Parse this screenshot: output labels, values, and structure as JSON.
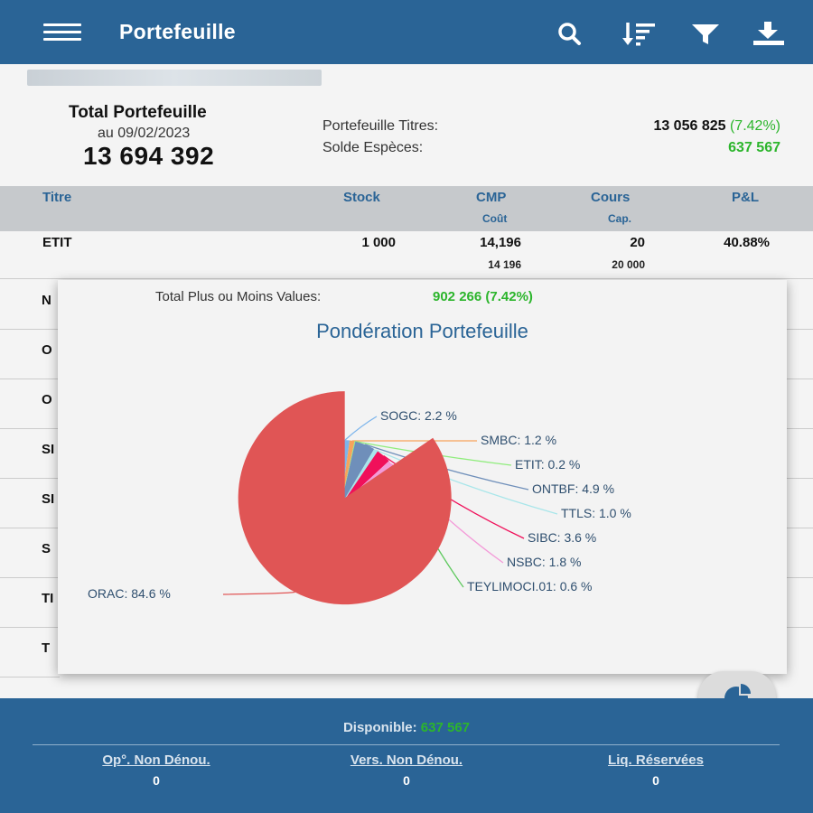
{
  "header": {
    "title": "Portefeuille",
    "icons": [
      "menu-icon",
      "search-icon",
      "sort-icon",
      "filter-icon",
      "download-icon"
    ]
  },
  "summary": {
    "total_label": "Total Portefeuille",
    "date": "au 09/02/2023",
    "total_value": "13 694 392",
    "titres_label": "Portefeuille Titres:",
    "titres_value": "13 056 825",
    "titres_pct": "(7.42%)",
    "especes_label": "Solde Espèces:",
    "especes_value": "637 567"
  },
  "table": {
    "headers": {
      "titre": "Titre",
      "stock": "Stock",
      "cmp": "CMP",
      "cmp_sub": "Coût",
      "cours": "Cours",
      "cours_sub": "Cap.",
      "pl": "P&L"
    },
    "row1": {
      "titre": "ETIT",
      "stock": "1 000",
      "cmp": "14,196",
      "cout": "14 196",
      "cours": "20",
      "cap": "20 000",
      "pl": "40.88%"
    },
    "partial_rows": [
      "N",
      "O",
      "O",
      "SI",
      "SI",
      "S",
      "TI",
      "T"
    ]
  },
  "modal": {
    "pmv_label": "Total Plus ou Moins Values:",
    "pmv_value": "902 266 (7.42%)",
    "chart_title": "Pondération Portefeuille"
  },
  "chart_data": {
    "type": "pie",
    "title": "Pondération Portefeuille",
    "slices": [
      {
        "label": "SOGC",
        "value": 2.2,
        "text": "SOGC: 2.2 %",
        "color": "#7cb5ec"
      },
      {
        "label": "SMBC",
        "value": 1.2,
        "text": "SMBC: 1.2 %",
        "color": "#f7a35c"
      },
      {
        "label": "ETIT",
        "value": 0.2,
        "text": "ETIT: 0.2 %",
        "color": "#90ed7d"
      },
      {
        "label": "ONTBF",
        "value": 4.9,
        "text": "ONTBF: 4.9 %",
        "color": "#6f8fba"
      },
      {
        "label": "TTLS",
        "value": 1.0,
        "text": "TTLS: 1.0 %",
        "color": "#a8e6ea"
      },
      {
        "label": "SIBC",
        "value": 3.6,
        "text": "SIBC: 3.6 %",
        "color": "#f0105a"
      },
      {
        "label": "NSBC",
        "value": 1.8,
        "text": "NSBC: 1.8 %",
        "color": "#f39ad8"
      },
      {
        "label": "TEYLIMOCI.01",
        "value": 0.6,
        "text": "TEYLIMOCI.01: 0.6 %",
        "color": "#5ec95e"
      },
      {
        "label": "ORAC",
        "value": 84.6,
        "text": "ORAC: 84.6 %",
        "color": "#e05555"
      }
    ]
  },
  "footer": {
    "disponible_label": "Disponible:",
    "disponible_value": "637 567",
    "col1_label": "Op°. Non Dénou.",
    "col1_value": "0",
    "col2_label": "Vers. Non Dénou.",
    "col2_value": "0",
    "col3_label": "Liq. Réservées",
    "col3_value": "0"
  },
  "fab_icon": "pie-chart-icon"
}
